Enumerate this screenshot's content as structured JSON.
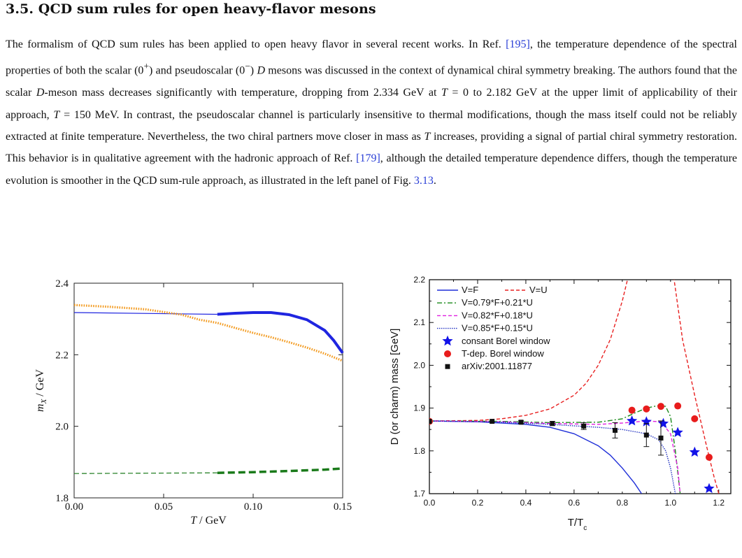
{
  "section": {
    "number": "3.5.",
    "title": "QCD sum rules for open heavy-flavor mesons"
  },
  "paragraph": {
    "s1": "The formalism of QCD sum rules has been applied to open heavy flavor in several recent works. In Ref. ",
    "ref1": "[195]",
    "s2": ", the temperature dependence of the spectral properties of both the scalar (0",
    "sup1": "+",
    "s3": ") and pseudoscalar (0",
    "sup2": "−",
    "s4": ") ",
    "d1": "D",
    "s5": " mesons was discussed in the context of dynamical chiral symmetry breaking. The authors found that the scalar ",
    "d2": "D",
    "s6": "-meson mass decreases significantly with temperature, dropping from 2.334 GeV at ",
    "t1": "T",
    "s7": " = 0 to 2.182 GeV at the upper limit of applicability of their approach, ",
    "t2": "T",
    "s8": " = 150 MeV. In contrast, the pseudoscalar channel is particularly insensitive to thermal modifications, though the mass itself could not be reliably extracted at finite temperature. Nevertheless, the two chiral partners move closer in mass as ",
    "t3": "T",
    "s9": " increases, providing a signal of partial chiral symmetry restoration. This behavior is in qualitative agreement with the hadronic approach of Ref. ",
    "ref2": "[179]",
    "s10": ", although the detailed temperature dependence differs, though the temperature evolution is smoother in the QCD sum-rule approach, as illustrated in the left panel of Fig. ",
    "ref3": "3.13",
    "s11": "."
  },
  "chart_data": [
    {
      "type": "line",
      "title": "",
      "xlabel": "T / GeV",
      "ylabel": "m_X / GeV",
      "xlim": [
        0.0,
        0.15
      ],
      "ylim": [
        1.8,
        2.4
      ],
      "xticks": [
        "0.00",
        "0.05",
        "0.10",
        "0.15"
      ],
      "yticks": [
        "1.8",
        "2.0",
        "2.2",
        "2.4"
      ],
      "grid": false,
      "colors": {
        "scalar": "#1f25e0",
        "scalar_alt": "#f39a1e",
        "pseudoscalar": "#1a7a1a"
      },
      "series": [
        {
          "style": "thin-solid",
          "color": "#1f25e0",
          "x": [
            0.0,
            0.08
          ],
          "y": [
            2.318,
            2.313
          ]
        },
        {
          "style": "thick-solid",
          "color": "#1f25e0",
          "x": [
            0.08,
            0.09,
            0.1,
            0.11,
            0.12,
            0.13,
            0.14,
            0.145,
            0.15
          ],
          "y": [
            2.313,
            2.316,
            2.318,
            2.318,
            2.312,
            2.298,
            2.268,
            2.24,
            2.205
          ]
        },
        {
          "style": "dotted",
          "color": "#f39a1e",
          "x": [
            0.0,
            0.02,
            0.04,
            0.06,
            0.07,
            0.08,
            0.09,
            0.1,
            0.11,
            0.12,
            0.13,
            0.14,
            0.15
          ],
          "y": [
            2.339,
            2.334,
            2.327,
            2.312,
            2.298,
            2.289,
            2.275,
            2.261,
            2.249,
            2.235,
            2.22,
            2.203,
            2.183
          ]
        },
        {
          "style": "thin-dashed",
          "color": "#1a7a1a",
          "x": [
            0.0,
            0.08
          ],
          "y": [
            1.868,
            1.87
          ]
        },
        {
          "style": "thick-dashed",
          "color": "#1a7a1a",
          "x": [
            0.08,
            0.1,
            0.12,
            0.14,
            0.15
          ],
          "y": [
            1.87,
            1.872,
            1.875,
            1.879,
            1.882
          ]
        }
      ]
    },
    {
      "type": "line",
      "title": "",
      "xlabel": "T/T",
      "xlabel_sub": "c",
      "ylabel": "D (or charm) mass [GeV]",
      "xlim": [
        0.0,
        1.25
      ],
      "ylim": [
        1.7,
        2.2
      ],
      "xticks": [
        "0.0",
        "0.2",
        "0.4",
        "0.6",
        "0.8",
        "1.0",
        "1.2"
      ],
      "yticks": [
        "1.7",
        "1.8",
        "1.9",
        "2.0",
        "2.1",
        "2.2"
      ],
      "grid": false,
      "legend_position": "top-left",
      "series": [
        {
          "name": "V=F",
          "style": "solid",
          "color": "#1f2fd8",
          "x": [
            0.0,
            0.2,
            0.4,
            0.5,
            0.6,
            0.7,
            0.75,
            0.8,
            0.85,
            0.88
          ],
          "y": [
            1.87,
            1.868,
            1.862,
            1.855,
            1.84,
            1.812,
            1.79,
            1.76,
            1.725,
            1.7
          ]
        },
        {
          "name": "V=U",
          "style": "dashed",
          "color": "#e82020",
          "x": [
            0.0,
            0.2,
            0.3,
            0.4,
            0.5,
            0.6,
            0.65,
            0.7,
            0.75,
            0.8,
            0.83
          ],
          "y": [
            1.87,
            1.871,
            1.875,
            1.883,
            1.898,
            1.93,
            1.958,
            2.0,
            2.06,
            2.15,
            2.22
          ]
        },
        {
          "name": "V=U",
          "style": "dashed",
          "color": "#e82020",
          "x": [
            1.01,
            1.05,
            1.1,
            1.15,
            1.18,
            1.2
          ],
          "y": [
            2.22,
            2.06,
            1.93,
            1.81,
            1.74,
            1.7
          ]
        },
        {
          "name": "V=0.79*F+0.21*U",
          "style": "dash-dot",
          "color": "#1a8a1a",
          "x": [
            0.0,
            0.3,
            0.5,
            0.7,
            0.8,
            0.85,
            0.9,
            0.95,
            0.98,
            1.0,
            1.02,
            1.03,
            1.04
          ],
          "y": [
            1.87,
            1.869,
            1.866,
            1.867,
            1.875,
            1.888,
            1.9,
            1.906,
            1.904,
            1.88,
            1.8,
            1.75,
            1.7
          ]
        },
        {
          "name": "V=0.82*F+0.18*U",
          "style": "dashed",
          "color": "#e020e0",
          "x": [
            0.0,
            0.3,
            0.5,
            0.7,
            0.8,
            0.9,
            0.96,
            1.0,
            1.03,
            1.04
          ],
          "y": [
            1.87,
            1.868,
            1.864,
            1.862,
            1.865,
            1.87,
            1.868,
            1.84,
            1.76,
            1.7
          ]
        },
        {
          "name": "V=0.85*F+0.15*U",
          "style": "dotted",
          "color": "#2030c0",
          "x": [
            0.0,
            0.3,
            0.5,
            0.7,
            0.8,
            0.9,
            0.95,
            0.98,
            1.0,
            1.02
          ],
          "y": [
            1.87,
            1.867,
            1.862,
            1.855,
            1.85,
            1.84,
            1.826,
            1.8,
            1.76,
            1.7
          ]
        },
        {
          "name": "consant Borel window",
          "style": "star",
          "color": "#1212e8",
          "x": [
            0.84,
            0.9,
            0.97,
            1.03,
            1.1,
            1.16
          ],
          "y": [
            1.87,
            1.868,
            1.864,
            1.843,
            1.797,
            1.712
          ]
        },
        {
          "name": "T-dep. Borel window",
          "style": "circle",
          "color": "#e81c1c",
          "x": [
            0.0,
            0.84,
            0.9,
            0.96,
            1.03,
            1.1,
            1.16
          ],
          "y": [
            1.869,
            1.895,
            1.898,
            1.904,
            1.905,
            1.875,
            1.785
          ]
        },
        {
          "name": "arXiv:2001.11877",
          "style": "square-errorbar",
          "color": "#111111",
          "x": [
            0.0,
            0.26,
            0.38,
            0.51,
            0.64,
            0.77,
            0.9,
            0.96
          ],
          "y": [
            1.869,
            1.869,
            1.867,
            1.864,
            1.858,
            1.848,
            1.837,
            1.83
          ],
          "err": [
            0.0,
            0.0,
            0.003,
            0.005,
            0.008,
            0.018,
            0.027,
            0.04
          ]
        }
      ]
    }
  ]
}
